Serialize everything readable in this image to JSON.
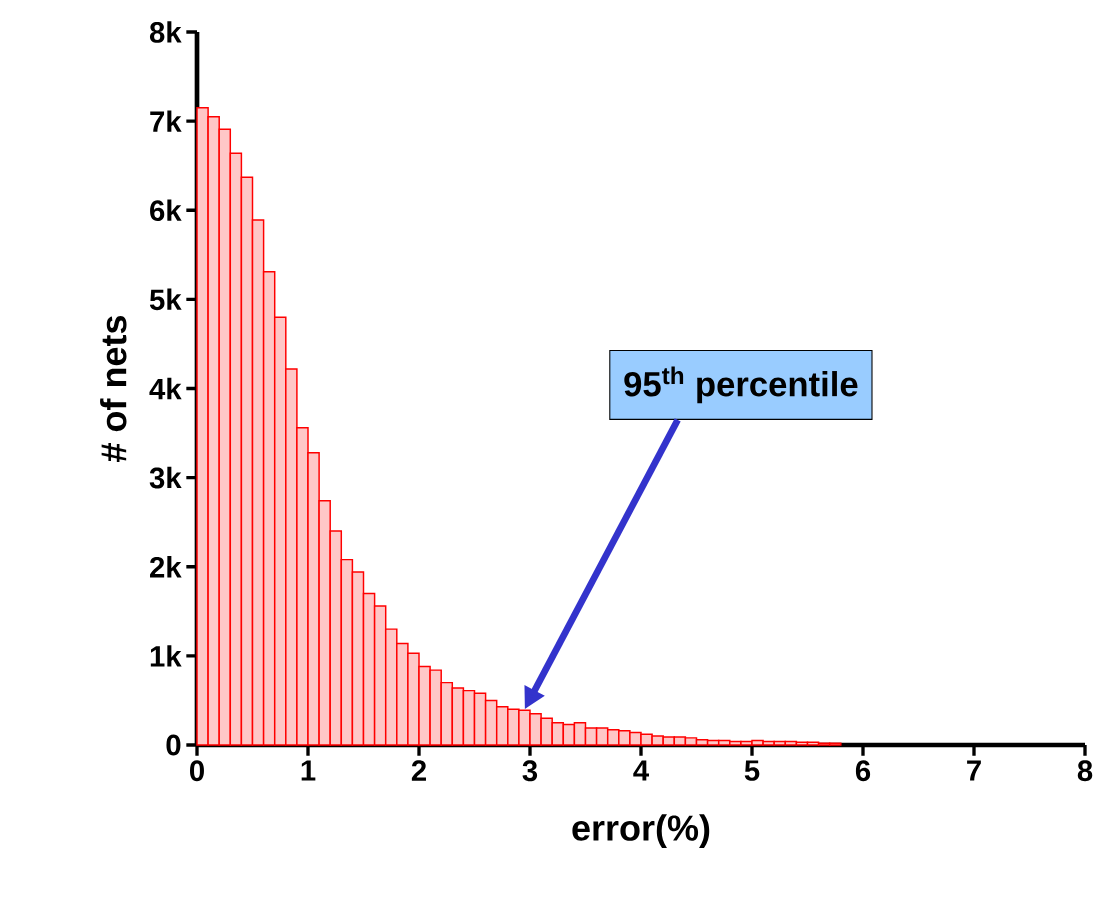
{
  "chart_data": {
    "type": "histogram",
    "xlabel": "error(%)",
    "ylabel": "# of nets",
    "color": "#ff0000",
    "bins": [
      0,
      0.1,
      0.2,
      0.3,
      0.4,
      0.5,
      0.6,
      0.7,
      0.8,
      0.9,
      1.0,
      1.1,
      1.2,
      1.3,
      1.4,
      1.5,
      1.6,
      1.7,
      1.8,
      1.9,
      2.0,
      2.1,
      2.2,
      2.3,
      2.4,
      2.5,
      2.6,
      2.7,
      2.8,
      2.9,
      3.0,
      3.1,
      3.2,
      3.3,
      3.4,
      3.5,
      3.6,
      3.7,
      3.8,
      3.9,
      4.0,
      4.1,
      4.2,
      4.3,
      4.4,
      4.5,
      4.6,
      4.7,
      4.8,
      4.9,
      5.0,
      5.1,
      5.2,
      5.3,
      5.4,
      5.5,
      5.6,
      5.7,
      5.8
    ],
    "values": [
      7150,
      7050,
      6910,
      6640,
      6370,
      5890,
      5310,
      4800,
      4220,
      3560,
      3280,
      2740,
      2400,
      2080,
      1940,
      1700,
      1560,
      1300,
      1140,
      1030,
      880,
      840,
      700,
      640,
      610,
      580,
      500,
      430,
      400,
      390,
      350,
      300,
      250,
      230,
      250,
      190,
      190,
      170,
      160,
      140,
      120,
      100,
      90,
      90,
      80,
      60,
      50,
      50,
      40,
      40,
      50,
      40,
      40,
      40,
      30,
      30,
      20,
      20
    ],
    "xlim": [
      0,
      8
    ],
    "xticks": [
      0,
      1,
      2,
      3,
      4,
      5,
      6,
      7,
      8
    ],
    "ylim": [
      0,
      8000
    ],
    "yticks": [
      0,
      {
        "value": 1000,
        "label": "1k"
      },
      {
        "value": 2000,
        "label": "2k"
      },
      {
        "value": 3000,
        "label": "3k"
      },
      {
        "value": 4000,
        "label": "4k"
      },
      {
        "value": 5000,
        "label": "5k"
      },
      {
        "value": 6000,
        "label": "6k"
      },
      {
        "value": 7000,
        "label": "7k"
      },
      {
        "value": 8000,
        "label": "8k"
      }
    ],
    "annotations": [
      "95$^{th}$ percentile"
    ]
  }
}
